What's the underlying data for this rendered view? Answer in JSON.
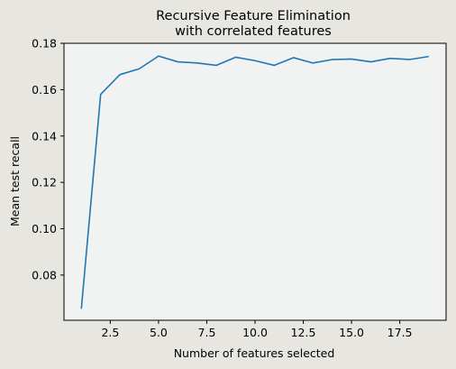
{
  "chart_data": {
    "type": "line",
    "title": [
      "Recursive Feature Elimination",
      "with correlated features"
    ],
    "xlabel": "Number of features selected",
    "ylabel": "Mean test recall",
    "xlim": [
      0.1,
      19.9
    ],
    "ylim": [
      0.0605,
      0.18
    ],
    "xticks": [
      2.5,
      5.0,
      7.5,
      10.0,
      12.5,
      15.0,
      17.5
    ],
    "yticks": [
      0.08,
      0.1,
      0.12,
      0.14,
      0.16,
      0.18
    ],
    "xtick_labels": [
      "2.5",
      "5.0",
      "7.5",
      "10.0",
      "12.5",
      "15.0",
      "17.5"
    ],
    "ytick_labels": [
      "0.08",
      "0.10",
      "0.12",
      "0.14",
      "0.16",
      "0.18"
    ],
    "grid": false,
    "series": [
      {
        "color": "#1f77b4",
        "x": [
          1,
          2,
          3,
          4,
          5,
          6,
          7,
          8,
          9,
          10,
          11,
          12,
          13,
          14,
          15,
          16,
          17,
          18,
          19
        ],
        "y": [
          0.0655,
          0.158,
          0.1665,
          0.169,
          0.1745,
          0.172,
          0.1715,
          0.1705,
          0.174,
          0.1725,
          0.1705,
          0.1738,
          0.1715,
          0.173,
          0.1732,
          0.172,
          0.1735,
          0.173,
          0.1743
        ]
      }
    ],
    "colors": {
      "plot_bg": "#f1f2f2",
      "figure_bg": "#e7e6e1",
      "axis": "#000000"
    }
  }
}
